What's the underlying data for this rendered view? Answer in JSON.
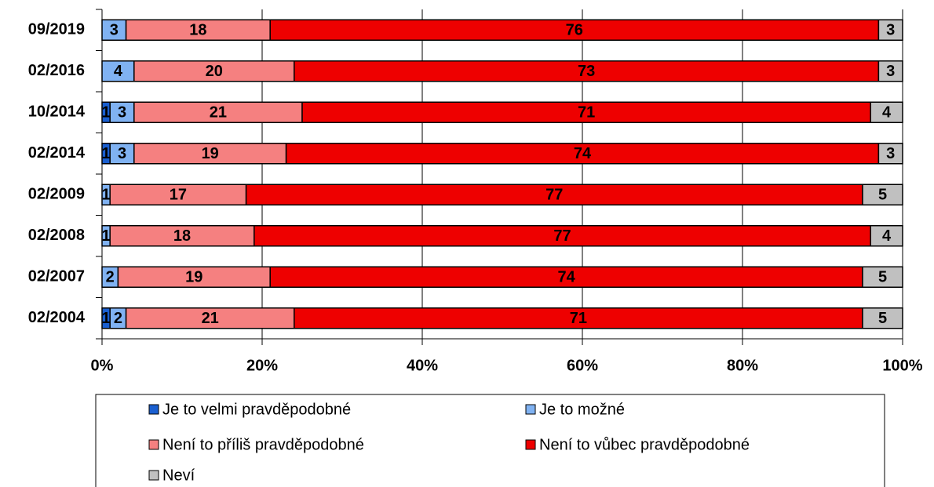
{
  "chart_data": {
    "type": "stacked_barh",
    "categories": [
      "09/2019",
      "02/2016",
      "10/2014",
      "02/2014",
      "02/2009",
      "02/2008",
      "02/2007",
      "02/2004"
    ],
    "series": [
      {
        "name": "Je to velmi pravděpodobné",
        "color": "#1a5fd0",
        "values": [
          null,
          null,
          1,
          1,
          null,
          null,
          null,
          1
        ]
      },
      {
        "name": "Je to možné",
        "color": "#80b2f2",
        "values": [
          3,
          4,
          3,
          3,
          1,
          1,
          2,
          2
        ]
      },
      {
        "name": "Není to příliš pravděpodobné",
        "color": "#f58080",
        "values": [
          18,
          20,
          21,
          19,
          17,
          18,
          19,
          21
        ]
      },
      {
        "name": "Není to vůbec pravděpodobné",
        "color": "#ee0000",
        "values": [
          76,
          73,
          71,
          74,
          77,
          77,
          74,
          71
        ]
      },
      {
        "name": "Neví",
        "color": "#c0c0c0",
        "values": [
          3,
          3,
          4,
          3,
          5,
          4,
          5,
          5
        ]
      }
    ],
    "xlim": [
      0,
      100
    ],
    "xticks": [
      {
        "value": 0,
        "label": "0%"
      },
      {
        "value": 20,
        "label": "20%"
      },
      {
        "value": 40,
        "label": "40%"
      },
      {
        "value": 60,
        "label": "60%"
      },
      {
        "value": 80,
        "label": "80%"
      },
      {
        "value": 100,
        "label": "100%"
      }
    ],
    "grid": true
  }
}
